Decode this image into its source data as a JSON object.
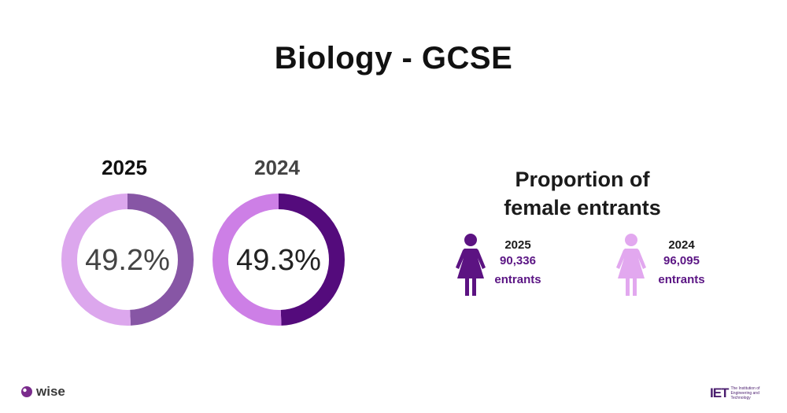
{
  "title": "Biology - GCSE",
  "colors": {
    "donut_2025_main": "#dca7ed",
    "donut_2025_accent": "#8756a5",
    "donut_2024_main": "#cd7fe6",
    "donut_2024_accent": "#540b7c",
    "figure_2025": "#5c1382",
    "figure_2024": "#e2a8ef",
    "label_purple": "#5b1584"
  },
  "chart_data": [
    {
      "type": "pie",
      "title": "2025",
      "values": [
        49.2,
        50.8
      ],
      "label": "49.2%"
    },
    {
      "type": "pie",
      "title": "2024",
      "values": [
        49.3,
        50.7
      ],
      "label": "49.3%"
    }
  ],
  "proportion": {
    "title_line1": "Proportion of",
    "title_line2": "female entrants",
    "items": [
      {
        "year": "2025",
        "count": "90,336",
        "unit": "entrants",
        "icon": "female-figure-icon"
      },
      {
        "year": "2024",
        "count": "96,095",
        "unit": "entrants",
        "icon": "female-figure-icon"
      }
    ]
  },
  "logos": {
    "wise": "wise",
    "iet_mark": "IET",
    "iet_line1": "The Institution of",
    "iet_line2": "Engineering and Technology"
  }
}
